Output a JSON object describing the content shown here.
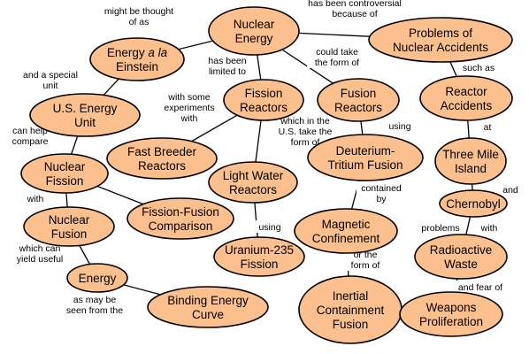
{
  "colors": {
    "node_fill": "#fbc08d",
    "node_stroke": "#000000",
    "background": "#ffffff"
  },
  "nodes": {
    "nuclear_energy": "Nuclear\nEnergy",
    "energy_a_la_einstein_prefix": "Energy ",
    "energy_a_la_einstein_italic": "a la",
    "energy_a_la_einstein_line2": "Einstein",
    "problems_of_nuclear_accidents": "Problems of\nNuclear Accidents",
    "us_energy_unit": "U.S. Energy\nUnit",
    "fission_reactors": "Fission\nReactors",
    "fusion_reactors": "Fusion\nReactors",
    "reactor_accidents": "Reactor\nAccidents",
    "fast_breeder_reactors": "Fast Breeder\nReactors",
    "nuclear_fission": "Nuclear\nFission",
    "deuterium_tritium_fusion": "Deuterium-\nTritium Fusion",
    "three_mile_island": "Three Mile\nIsland",
    "light_water_reactors": "Light Water\nReactors",
    "chernobyl": "Chernobyl",
    "nuclear_fusion": "Nuclear\nFusion",
    "fission_fusion_comparison": "Fission-Fusion\nComparison",
    "magnetic_confinement": "Magnetic\nConfinement",
    "uranium_235_fission": "Uranium-235\nFission",
    "radioactive_waste": "Radioactive\nWaste",
    "energy": "Energy",
    "inertial_containment_fusion": "Inertial\nContainment\nFusion",
    "binding_energy_curve": "Binding Energy\nCurve",
    "weapons_proliferation": "Weapons\nProliferation"
  },
  "links": {
    "might_be_thought_of_as": "might be thought\nof as",
    "has_been_controversial_because_of": "has been controversial\nbecause of",
    "has_been_limited_to": "has been\nlimited to",
    "could_take_the_form_of": "could take\nthe form of",
    "and_a_special_unit": "and a special\nunit",
    "such_as": "such as",
    "with_some_experiments_with": "with some\nexperiments\nwith",
    "using_1": "using",
    "can_help_compare": "can help\ncompare",
    "which_in_the_us_take_the_form_of": "which in the\nU.S. take the\nform of",
    "at": "at",
    "with": "with",
    "contained_by": "contained\nby",
    "and": "and",
    "problems": "problems",
    "with_2": "with",
    "using_2": "using",
    "which_can_yield_useful": "which can\nyield useful",
    "or_the_form_of": "or the\nform of",
    "and_fear_of": "and fear of",
    "as_may_be_seen_from_the": "as may be\nseen from the"
  }
}
